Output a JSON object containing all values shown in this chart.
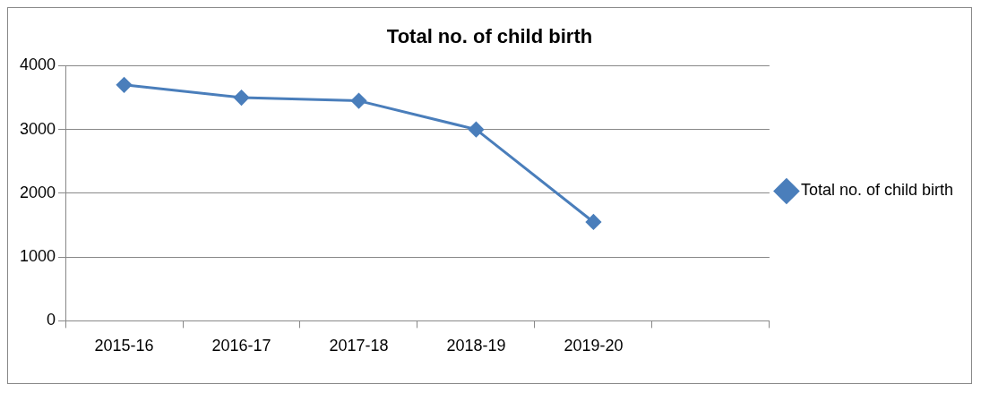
{
  "chart_data": {
    "type": "line",
    "title": "Total no. of child birth",
    "categories": [
      "2015-16",
      "2016-17",
      "2017-18",
      "2018-19",
      "2019-20",
      null
    ],
    "series": [
      {
        "name": "Total no. of child birth",
        "color": "#4a7ebb",
        "values": [
          3700,
          3500,
          3450,
          3000,
          1550,
          null
        ]
      }
    ],
    "ylim": [
      0,
      4000
    ],
    "yticks": [
      0,
      1000,
      2000,
      3000,
      4000
    ],
    "grid": "y",
    "legend": "right",
    "marker": "diamond",
    "line_style": "solid"
  }
}
